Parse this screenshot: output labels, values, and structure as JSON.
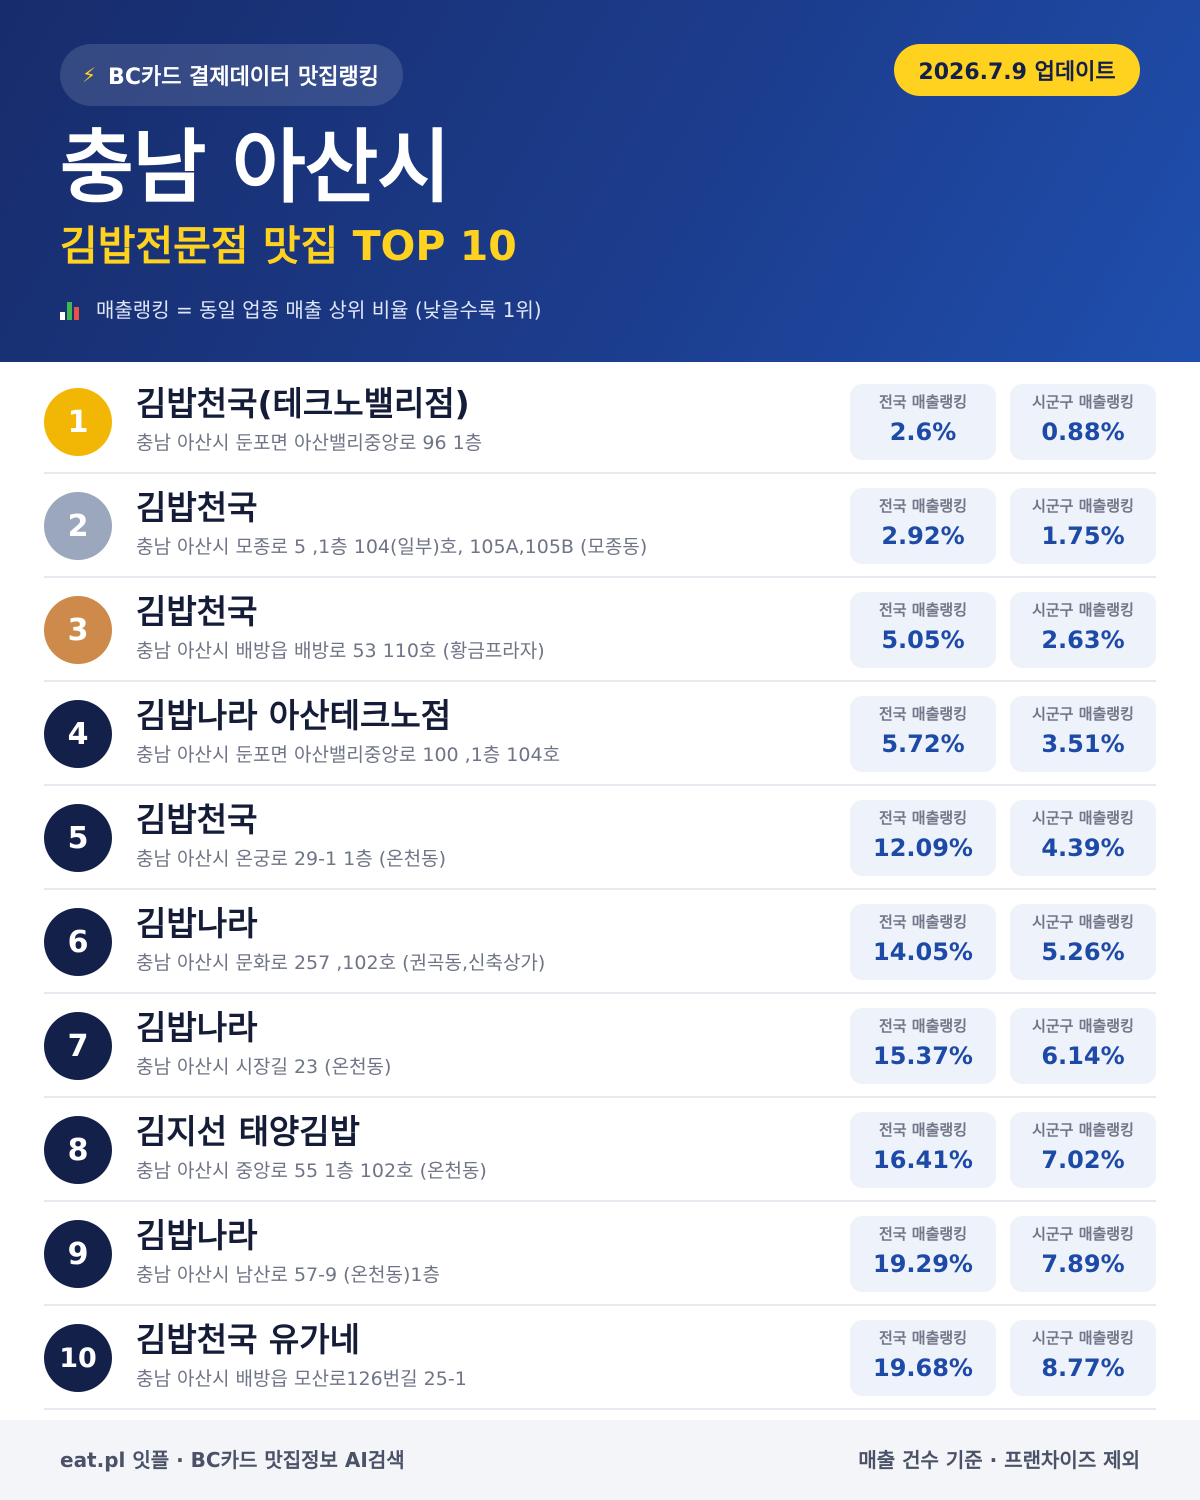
{
  "header": {
    "source_label": "BC카드 결제데이터 맛집랭킹",
    "bolt_icon": "⚡",
    "update_label": "2026.7.9 업데이트",
    "region_title": "충남 아산시",
    "category_title": "김밥전문점 맛집 TOP 10",
    "legend_text": "매출랭킹 = 동일 업종 매출 상위 비율 (낮을수록 1위)",
    "legend_icon": "bar-chart-icon"
  },
  "colors": {
    "accent_yellow": "#ffd21f",
    "header_dark": "#172c6b",
    "header_light": "#1f4fae",
    "rank_gold": "#f2b705",
    "rank_silver": "#9ba7bd",
    "rank_bronze": "#cd8a4b",
    "rank_default": "#13204a",
    "value_blue": "#1d4aa6"
  },
  "list": {
    "national_label": "전국 매출랭킹",
    "district_label": "시군구 매출랭킹",
    "items": [
      {
        "rank": "1",
        "name": "김밥천국(테크노밸리점)",
        "address": "충남 아산시 둔포면 아산밸리중앙로 96 1층",
        "national": "2.6%",
        "district": "0.88%",
        "badge_color": "#f2b705"
      },
      {
        "rank": "2",
        "name": "김밥천국",
        "address": "충남 아산시 모종로 5 ,1층 104(일부)호, 105A,105B (모종동)",
        "national": "2.92%",
        "district": "1.75%",
        "badge_color": "#9ba7bd"
      },
      {
        "rank": "3",
        "name": "김밥천국",
        "address": "충남 아산시 배방읍 배방로 53 110호 (황금프라자)",
        "national": "5.05%",
        "district": "2.63%",
        "badge_color": "#cd8a4b"
      },
      {
        "rank": "4",
        "name": "김밥나라 아산테크노점",
        "address": "충남 아산시 둔포면 아산밸리중앙로 100 ,1층 104호",
        "national": "5.72%",
        "district": "3.51%",
        "badge_color": "#13204a"
      },
      {
        "rank": "5",
        "name": "김밥천국",
        "address": "충남 아산시 온궁로 29-1 1층 (온천동)",
        "national": "12.09%",
        "district": "4.39%",
        "badge_color": "#13204a"
      },
      {
        "rank": "6",
        "name": "김밥나라",
        "address": "충남 아산시 문화로 257 ,102호 (권곡동,신축상가)",
        "national": "14.05%",
        "district": "5.26%",
        "badge_color": "#13204a"
      },
      {
        "rank": "7",
        "name": "김밥나라",
        "address": "충남 아산시 시장길 23 (온천동)",
        "national": "15.37%",
        "district": "6.14%",
        "badge_color": "#13204a"
      },
      {
        "rank": "8",
        "name": "김지선 태양김밥",
        "address": "충남 아산시 중앙로 55 1층 102호 (온천동)",
        "national": "16.41%",
        "district": "7.02%",
        "badge_color": "#13204a"
      },
      {
        "rank": "9",
        "name": "김밥나라",
        "address": "충남 아산시 남산로 57-9 (온천동)1층",
        "national": "19.29%",
        "district": "7.89%",
        "badge_color": "#13204a"
      },
      {
        "rank": "10",
        "name": "김밥천국 유가네",
        "address": "충남 아산시 배방읍 모산로126번길 25-1",
        "national": "19.68%",
        "district": "8.77%",
        "badge_color": "#13204a"
      }
    ]
  },
  "footer": {
    "left_text": "eat.pl 잇플 · BC카드 맛집정보 AI검색",
    "right_text": "매출 건수 기준 · 프랜차이즈 제외"
  }
}
